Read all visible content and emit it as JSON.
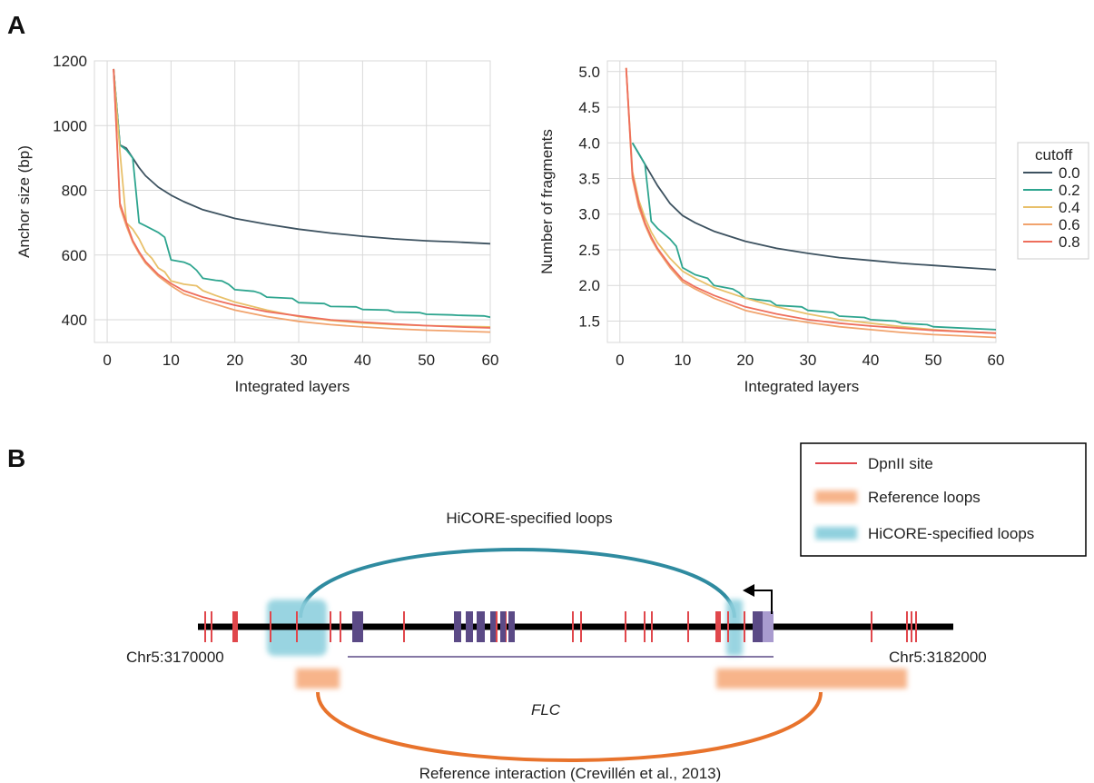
{
  "panel_labels": {
    "a": "A",
    "b": "B"
  },
  "chart_data": [
    {
      "type": "line",
      "xlabel": "Integrated layers",
      "ylabel": "Anchor size (bp)",
      "xlim": [
        -2,
        60
      ],
      "ylim": [
        330,
        1200
      ],
      "xticks": [
        0,
        10,
        20,
        30,
        40,
        50,
        60
      ],
      "yticks": [
        400,
        600,
        800,
        1000,
        1200
      ],
      "grid": true,
      "series": [
        {
          "name": "0.0",
          "color": "#3d5260",
          "x": [
            1,
            2,
            3,
            4,
            5,
            6,
            8,
            10,
            12,
            15,
            20,
            25,
            30,
            35,
            40,
            45,
            50,
            55,
            60
          ],
          "y": [
            1175,
            940,
            930,
            900,
            870,
            845,
            810,
            785,
            765,
            740,
            713,
            695,
            680,
            668,
            658,
            650,
            644,
            640,
            635
          ]
        },
        {
          "name": "0.2",
          "color": "#2ea58f",
          "x": [
            1,
            2,
            3,
            4,
            5,
            6,
            8,
            9,
            10,
            12,
            13,
            14,
            15,
            17,
            18,
            19,
            20,
            23,
            24,
            25,
            29,
            30,
            34,
            35,
            39,
            40,
            44,
            45,
            49,
            50,
            54,
            55,
            59,
            60
          ],
          "y": [
            1175,
            940,
            925,
            900,
            700,
            690,
            670,
            655,
            585,
            578,
            570,
            553,
            528,
            522,
            520,
            510,
            493,
            488,
            482,
            470,
            466,
            453,
            450,
            441,
            440,
            432,
            430,
            424,
            422,
            417,
            415,
            414,
            412,
            408
          ]
        },
        {
          "name": "0.4",
          "color": "#e8c06a",
          "x": [
            1,
            2,
            3,
            4,
            5,
            6,
            7,
            8,
            9,
            10,
            12,
            14,
            15,
            17,
            20,
            25,
            30,
            35,
            40,
            45,
            50,
            55,
            60
          ],
          "y": [
            1175,
            920,
            700,
            680,
            650,
            610,
            590,
            560,
            548,
            520,
            510,
            505,
            490,
            475,
            455,
            430,
            410,
            398,
            390,
            385,
            382,
            380,
            378
          ]
        },
        {
          "name": "0.6",
          "color": "#f1a36d",
          "x": [
            1,
            2,
            3,
            4,
            5,
            6,
            8,
            10,
            12,
            15,
            20,
            25,
            30,
            35,
            40,
            45,
            50,
            55,
            60
          ],
          "y": [
            1175,
            750,
            690,
            640,
            605,
            575,
            535,
            505,
            480,
            460,
            430,
            410,
            395,
            385,
            378,
            372,
            368,
            365,
            362
          ]
        },
        {
          "name": "0.8",
          "color": "#ee6e5c",
          "x": [
            1,
            2,
            3,
            4,
            5,
            6,
            8,
            10,
            12,
            15,
            20,
            25,
            30,
            35,
            40,
            45,
            50,
            55,
            60
          ],
          "y": [
            1175,
            760,
            700,
            645,
            610,
            580,
            540,
            512,
            490,
            470,
            445,
            425,
            412,
            400,
            393,
            387,
            382,
            378,
            375
          ]
        }
      ]
    },
    {
      "type": "line",
      "xlabel": "Integrated layers",
      "ylabel": "Number of fragments",
      "xlim": [
        -2,
        60
      ],
      "ylim": [
        1.2,
        5.15
      ],
      "xticks": [
        0,
        10,
        20,
        30,
        40,
        50,
        60
      ],
      "yticks": [
        1.5,
        2.0,
        2.5,
        3.0,
        3.5,
        4.0,
        4.5,
        5.0
      ],
      "ytick_labels": [
        "1.5",
        "2.0",
        "2.5",
        "3.0",
        "3.5",
        "4.0",
        "4.5",
        "5.0"
      ],
      "grid": true,
      "legend": {
        "title": "cutoff",
        "placement": "right"
      },
      "series": [
        {
          "name": "0.0",
          "color": "#3d5260",
          "x": [
            2,
            3,
            4,
            5,
            6,
            8,
            10,
            12,
            15,
            20,
            25,
            30,
            35,
            40,
            45,
            50,
            55,
            60
          ],
          "y": [
            4.0,
            3.85,
            3.7,
            3.55,
            3.4,
            3.15,
            2.98,
            2.88,
            2.76,
            2.62,
            2.52,
            2.45,
            2.39,
            2.35,
            2.31,
            2.28,
            2.25,
            2.22
          ]
        },
        {
          "name": "0.2",
          "color": "#2ea58f",
          "x": [
            2,
            3,
            4,
            5,
            6,
            8,
            9,
            10,
            12,
            14,
            15,
            18,
            19,
            20,
            24,
            25,
            29,
            30,
            34,
            35,
            39,
            40,
            44,
            45,
            49,
            50,
            55,
            60
          ],
          "y": [
            4.0,
            3.85,
            3.7,
            2.9,
            2.8,
            2.65,
            2.55,
            2.25,
            2.15,
            2.1,
            2.0,
            1.95,
            1.9,
            1.82,
            1.78,
            1.72,
            1.7,
            1.65,
            1.62,
            1.57,
            1.55,
            1.52,
            1.5,
            1.47,
            1.45,
            1.42,
            1.4,
            1.38
          ]
        },
        {
          "name": "0.4",
          "color": "#e8c06a",
          "x": [
            1,
            2,
            3,
            4,
            5,
            6,
            8,
            10,
            12,
            15,
            20,
            25,
            30,
            35,
            40,
            45,
            50,
            55,
            60
          ],
          "y": [
            5.05,
            3.6,
            3.2,
            2.95,
            2.75,
            2.6,
            2.38,
            2.2,
            2.1,
            1.97,
            1.82,
            1.7,
            1.6,
            1.52,
            1.47,
            1.42,
            1.38,
            1.35,
            1.33
          ]
        },
        {
          "name": "0.6",
          "color": "#f1a36d",
          "x": [
            1,
            2,
            3,
            4,
            5,
            6,
            8,
            10,
            12,
            15,
            20,
            25,
            30,
            35,
            40,
            45,
            50,
            55,
            60
          ],
          "y": [
            5.05,
            3.5,
            3.1,
            2.85,
            2.65,
            2.5,
            2.25,
            2.05,
            1.95,
            1.82,
            1.65,
            1.55,
            1.48,
            1.42,
            1.38,
            1.34,
            1.31,
            1.29,
            1.27
          ]
        },
        {
          "name": "0.8",
          "color": "#ee6e5c",
          "x": [
            1,
            2,
            3,
            4,
            5,
            6,
            8,
            10,
            12,
            15,
            20,
            25,
            30,
            35,
            40,
            45,
            50,
            55,
            60
          ],
          "y": [
            5.05,
            3.55,
            3.15,
            2.88,
            2.68,
            2.52,
            2.28,
            2.08,
            1.98,
            1.86,
            1.7,
            1.6,
            1.52,
            1.47,
            1.43,
            1.4,
            1.37,
            1.35,
            1.33
          ]
        }
      ]
    }
  ],
  "diagram": {
    "left_coord": "Chr5:3170000",
    "right_coord": "Chr5:3182000",
    "gene_label": "FLC",
    "hicore_loop_label": "HiCORE-specified loops",
    "reference_interaction_label": "Reference interaction (Crevillén et al., 2013)",
    "legend": [
      {
        "label": "DpnII site",
        "color": "#e0474c"
      },
      {
        "label": "Reference loops",
        "color": "#f7b48a"
      },
      {
        "label": "HiCORE-specified loops",
        "color": "#8fd0de"
      }
    ],
    "colors": {
      "chromosome": "#000000",
      "dpnii": "#e0474c",
      "exon": "#5b4a86",
      "exon_light": "#a99bcf",
      "hicore_loop": "#2f8ba0",
      "reference_loop": "#e8732c",
      "gene_line": "#5b4a86"
    }
  }
}
